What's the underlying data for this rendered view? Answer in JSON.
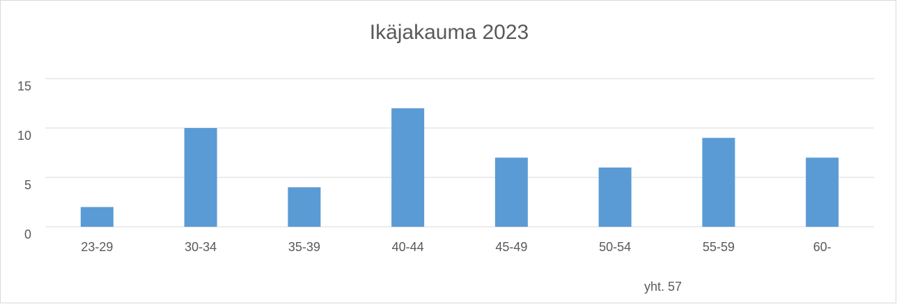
{
  "chart_data": {
    "type": "bar",
    "title": "Ikäjakauma 2023",
    "categories": [
      "23-29",
      "30-34",
      "35-39",
      "40-44",
      "45-49",
      "50-54",
      "55-59",
      "60-"
    ],
    "values": [
      2,
      10,
      4,
      12,
      7,
      6,
      9,
      7
    ],
    "color": "#5b9bd5",
    "ylim": [
      0,
      15
    ],
    "yticks": [
      0,
      5,
      10,
      15
    ],
    "grid": true,
    "annotation": "yht. 57"
  }
}
